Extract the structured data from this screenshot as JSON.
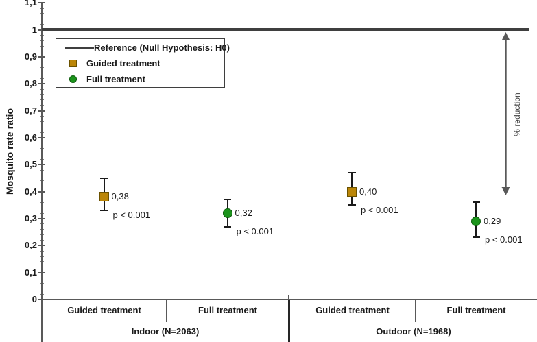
{
  "chart_data": {
    "type": "scatter",
    "title": "",
    "ylabel": "Mosquito rate ratio",
    "ylim": [
      0,
      1.1
    ],
    "y_major_tick": 0.1,
    "y_minor_tick": 0.02,
    "y_tick_labels": [
      "0",
      "0,1",
      "0,2",
      "0,3",
      "0,4",
      "0,5",
      "0,6",
      "0,7",
      "0,8",
      "0,9",
      "1",
      "1,1"
    ],
    "decimal_separator": ",",
    "grid": false,
    "legend_position": "top-left",
    "reference": {
      "label": "Reference (Null Hypothesis: H0)",
      "value": 1.0,
      "color": "#3f3f3f"
    },
    "series": [
      {
        "name": "Guided treatment",
        "marker": "square",
        "fill": "#bb8608",
        "border": "#6b5200"
      },
      {
        "name": "Full treatment",
        "marker": "circle",
        "fill": "#1c941c",
        "border": "#0b5c0b"
      }
    ],
    "groups": [
      {
        "label": "Indoor (N=2063)",
        "categories": [
          "Guided treatment",
          "Full treatment"
        ]
      },
      {
        "label": "Outdoor (N=1968)",
        "categories": [
          "Guided treatment",
          "Full treatment"
        ]
      }
    ],
    "points": [
      {
        "group": "Indoor (N=2063)",
        "category": "Guided treatment",
        "series": "Guided treatment",
        "value": 0.38,
        "value_label": "0,38",
        "ci_low": 0.33,
        "ci_high": 0.45,
        "p_label": "p < 0.001"
      },
      {
        "group": "Indoor (N=2063)",
        "category": "Full treatment",
        "series": "Full treatment",
        "value": 0.32,
        "value_label": "0,32",
        "ci_low": 0.27,
        "ci_high": 0.37,
        "p_label": "p < 0.001"
      },
      {
        "group": "Outdoor (N=1968)",
        "category": "Guided treatment",
        "series": "Guided treatment",
        "value": 0.4,
        "value_label": "0,40",
        "ci_low": 0.35,
        "ci_high": 0.47,
        "p_label": "p < 0.001"
      },
      {
        "group": "Outdoor (N=1968)",
        "category": "Full treatment",
        "series": "Full treatment",
        "value": 0.29,
        "value_label": "0,29",
        "ci_low": 0.23,
        "ci_high": 0.36,
        "p_label": "p < 0.001"
      }
    ],
    "annotation": {
      "label": "% reduction",
      "arrow": "double-headed-vertical",
      "arrow_color": "#595959"
    }
  }
}
